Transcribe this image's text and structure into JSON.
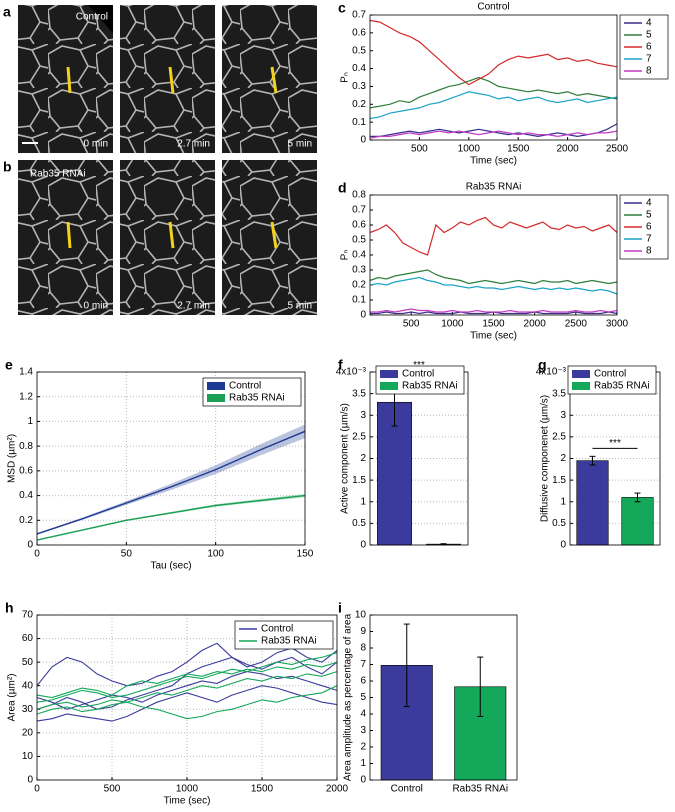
{
  "image_panels": [
    {
      "panel": "a",
      "condition": "Control",
      "times": [
        "0 min",
        "2.7 min",
        "5 min"
      ]
    },
    {
      "panel": "b",
      "condition": "Rab35 RNAi",
      "times": [
        "0 min",
        "2.7 min",
        "5 min"
      ]
    }
  ],
  "chart_data": [
    {
      "panel": "c",
      "type": "line",
      "title": "Control",
      "x_label": "Time (sec)",
      "y_label": "Pₙ",
      "xlim": [
        0,
        2500
      ],
      "xticks": [
        500,
        1000,
        1500,
        2000,
        2500
      ],
      "ylim": [
        0,
        0.7
      ],
      "yticks": [
        0,
        0.1,
        0.2,
        0.3,
        0.4,
        0.5,
        0.6,
        0.7
      ],
      "grid": false,
      "legend": "outside right",
      "x": [
        0,
        100,
        200,
        300,
        400,
        500,
        600,
        700,
        800,
        900,
        1000,
        1100,
        1200,
        1300,
        1400,
        1500,
        1600,
        1700,
        1800,
        1900,
        2000,
        2100,
        2200,
        2300,
        2400,
        2500
      ],
      "series": [
        {
          "name": "4",
          "color": "#3a2f8c",
          "values": [
            0.02,
            0.02,
            0.03,
            0.04,
            0.05,
            0.04,
            0.05,
            0.06,
            0.05,
            0.04,
            0.05,
            0.06,
            0.05,
            0.04,
            0.03,
            0.04,
            0.03,
            0.02,
            0.03,
            0.04,
            0.03,
            0.02,
            0.03,
            0.04,
            0.06,
            0.09
          ]
        },
        {
          "name": "5",
          "color": "#2e7d3a",
          "values": [
            0.18,
            0.19,
            0.2,
            0.22,
            0.21,
            0.24,
            0.26,
            0.28,
            0.3,
            0.31,
            0.33,
            0.35,
            0.33,
            0.3,
            0.29,
            0.28,
            0.27,
            0.28,
            0.27,
            0.26,
            0.27,
            0.25,
            0.26,
            0.25,
            0.24,
            0.23
          ]
        },
        {
          "name": "6",
          "color": "#d42a2a",
          "values": [
            0.67,
            0.66,
            0.63,
            0.6,
            0.58,
            0.55,
            0.5,
            0.45,
            0.4,
            0.35,
            0.31,
            0.34,
            0.37,
            0.42,
            0.45,
            0.47,
            0.46,
            0.47,
            0.48,
            0.45,
            0.46,
            0.44,
            0.45,
            0.43,
            0.42,
            0.41
          ]
        },
        {
          "name": "7",
          "color": "#1ba3c6",
          "values": [
            0.12,
            0.13,
            0.15,
            0.16,
            0.17,
            0.18,
            0.2,
            0.21,
            0.23,
            0.25,
            0.27,
            0.26,
            0.25,
            0.23,
            0.24,
            0.22,
            0.23,
            0.24,
            0.22,
            0.21,
            0.22,
            0.23,
            0.21,
            0.22,
            0.23,
            0.24
          ]
        },
        {
          "name": "8",
          "color": "#c43cc4",
          "values": [
            0.01,
            0.02,
            0.02,
            0.03,
            0.04,
            0.03,
            0.04,
            0.05,
            0.04,
            0.05,
            0.04,
            0.03,
            0.04,
            0.05,
            0.04,
            0.03,
            0.04,
            0.03,
            0.03,
            0.02,
            0.03,
            0.04,
            0.03,
            0.04,
            0.04,
            0.05
          ]
        }
      ]
    },
    {
      "panel": "d",
      "type": "line",
      "title": "Rab35 RNAi",
      "x_label": "Time (sec)",
      "y_label": "Pₙ",
      "xlim": [
        0,
        3000
      ],
      "xticks": [
        500,
        1000,
        1500,
        2000,
        2500,
        3000
      ],
      "ylim": [
        0,
        0.8
      ],
      "yticks": [
        0,
        0.1,
        0.2,
        0.3,
        0.4,
        0.5,
        0.6,
        0.7,
        0.8
      ],
      "grid": false,
      "legend": "outside right",
      "x": [
        0,
        100,
        200,
        300,
        400,
        500,
        600,
        700,
        800,
        900,
        1000,
        1100,
        1200,
        1300,
        1400,
        1500,
        1600,
        1700,
        1800,
        1900,
        2000,
        2100,
        2200,
        2300,
        2400,
        2500,
        2600,
        2700,
        2800,
        2900,
        3000
      ],
      "series": [
        {
          "name": "4",
          "color": "#3a2f8c",
          "values": [
            0.01,
            0.01,
            0.02,
            0.01,
            0.01,
            0.02,
            0.01,
            0.02,
            0.01,
            0.01,
            0.01,
            0.02,
            0.01,
            0.01,
            0.01,
            0.02,
            0.01,
            0.01,
            0.01,
            0.01,
            0.02,
            0.01,
            0.01,
            0.01,
            0.01,
            0.02,
            0.01,
            0.01,
            0.01,
            0.02,
            0.01
          ]
        },
        {
          "name": "5",
          "color": "#2e7d3a",
          "values": [
            0.23,
            0.25,
            0.24,
            0.26,
            0.27,
            0.28,
            0.29,
            0.3,
            0.27,
            0.25,
            0.24,
            0.23,
            0.21,
            0.22,
            0.23,
            0.22,
            0.21,
            0.22,
            0.23,
            0.22,
            0.21,
            0.23,
            0.22,
            0.22,
            0.23,
            0.21,
            0.22,
            0.23,
            0.22,
            0.21,
            0.22
          ]
        },
        {
          "name": "6",
          "color": "#d42a2a",
          "values": [
            0.55,
            0.57,
            0.6,
            0.55,
            0.48,
            0.45,
            0.42,
            0.4,
            0.6,
            0.55,
            0.58,
            0.62,
            0.6,
            0.63,
            0.65,
            0.6,
            0.58,
            0.62,
            0.6,
            0.58,
            0.6,
            0.62,
            0.58,
            0.57,
            0.6,
            0.58,
            0.59,
            0.56,
            0.58,
            0.6,
            0.55
          ]
        },
        {
          "name": "7",
          "color": "#1ba3c6",
          "values": [
            0.2,
            0.21,
            0.2,
            0.22,
            0.23,
            0.24,
            0.25,
            0.23,
            0.22,
            0.2,
            0.2,
            0.19,
            0.18,
            0.19,
            0.18,
            0.18,
            0.17,
            0.18,
            0.19,
            0.18,
            0.17,
            0.18,
            0.17,
            0.18,
            0.17,
            0.18,
            0.17,
            0.16,
            0.17,
            0.16,
            0.14
          ]
        },
        {
          "name": "8",
          "color": "#c43cc4",
          "values": [
            0.02,
            0.02,
            0.03,
            0.02,
            0.03,
            0.04,
            0.03,
            0.03,
            0.02,
            0.02,
            0.03,
            0.02,
            0.02,
            0.03,
            0.02,
            0.02,
            0.02,
            0.03,
            0.02,
            0.02,
            0.02,
            0.03,
            0.02,
            0.02,
            0.02,
            0.03,
            0.02,
            0.02,
            0.03,
            0.02,
            0.03
          ]
        }
      ]
    },
    {
      "panel": "e",
      "type": "band",
      "x_label": "Tau (sec)",
      "y_label": "MSD (µm²)",
      "xlim": [
        0,
        150
      ],
      "xticks": [
        0,
        50,
        100,
        150
      ],
      "ylim": [
        0,
        1.4
      ],
      "yticks": [
        0,
        0.2,
        0.4,
        0.6,
        0.8,
        1,
        1.2,
        1.4
      ],
      "grid": true,
      "legend": "upper right",
      "x": [
        0,
        25,
        50,
        75,
        100,
        125,
        150
      ],
      "series": [
        {
          "name": "Control",
          "color": "#1f3a93",
          "values": [
            0.09,
            0.21,
            0.34,
            0.47,
            0.61,
            0.77,
            0.92
          ],
          "errors": [
            0.005,
            0.01,
            0.015,
            0.025,
            0.035,
            0.045,
            0.055
          ]
        },
        {
          "name": "Rab35 RNAi",
          "color": "#1aa055",
          "values": [
            0.04,
            0.12,
            0.2,
            0.26,
            0.32,
            0.36,
            0.4
          ],
          "errors": [
            0.003,
            0.005,
            0.006,
            0.008,
            0.01,
            0.012,
            0.014
          ]
        }
      ]
    },
    {
      "panel": "f",
      "type": "bar",
      "y_label": "Active component (µm/s)",
      "ylim": [
        0,
        4
      ],
      "yticks": [
        0,
        0.5,
        1,
        1.5,
        2,
        2.5,
        3,
        3.5,
        {
          "value": 4,
          "label": "4x10⁻³"
        }
      ],
      "grid": true,
      "legend": "upper right",
      "annotation": "***",
      "categories": [
        "Control",
        "Rab35 RNAi"
      ],
      "colors": [
        "#3b3b9e",
        "#14a85a"
      ],
      "values": [
        3.3,
        0.02
      ],
      "errors": [
        0.55,
        0.01
      ]
    },
    {
      "panel": "g",
      "type": "bar",
      "y_label": "Diffusive componenet (µm/s)",
      "ylim": [
        0,
        4
      ],
      "yticks": [
        0,
        0.5,
        1,
        1.5,
        2,
        2.5,
        3,
        3.5,
        {
          "value": 4,
          "label": "4x10⁻³"
        }
      ],
      "grid": true,
      "legend": "upper right",
      "annotation": "***",
      "categories": [
        "Control",
        "Rab35 RNAi"
      ],
      "colors": [
        "#3b3b9e",
        "#14a85a"
      ],
      "values": [
        1.95,
        1.1
      ],
      "errors": [
        0.1,
        0.1
      ]
    },
    {
      "panel": "h",
      "type": "multiline",
      "x_label": "Time (sec)",
      "y_label": "Area (µm²)",
      "xlim": [
        0,
        2000
      ],
      "xticks": [
        0,
        500,
        1000,
        1500,
        2000
      ],
      "ylim": [
        0,
        70
      ],
      "yticks": [
        0,
        10,
        20,
        30,
        40,
        50,
        60,
        70
      ],
      "grid": true,
      "legend": "upper right",
      "x": [
        0,
        100,
        200,
        300,
        400,
        500,
        600,
        700,
        800,
        900,
        1000,
        1100,
        1200,
        1300,
        1400,
        1500,
        1600,
        1700,
        1800,
        1900,
        2000
      ],
      "series": [
        {
          "name": "Control",
          "color": "#3b3b9e",
          "traces": [
            [
              30,
              32,
              35,
              33,
              30,
              31,
              34,
              36,
              38,
              40,
              45,
              48,
              50,
              52,
              49,
              47,
              50,
              52,
              48,
              45,
              50
            ],
            [
              40,
              48,
              52,
              50,
              45,
              42,
              40,
              41,
              44,
              46,
              50,
              55,
              58,
              52,
              48,
              50,
              54,
              56,
              52,
              50,
              55
            ],
            [
              25,
              26,
              28,
              27,
              26,
              25,
              27,
              30,
              33,
              35,
              37,
              35,
              33,
              36,
              38,
              40,
              39,
              37,
              35,
              33,
              32
            ],
            [
              35,
              33,
              30,
              32,
              34,
              36,
              35,
              33,
              36,
              38,
              40,
              42,
              41,
              44,
              46,
              45,
              43,
              44,
              42,
              40,
              38
            ]
          ]
        },
        {
          "name": "Rab35 RNAi",
          "color": "#14a85a",
          "traces": [
            [
              33,
              34,
              36,
              38,
              37,
              35,
              36,
              38,
              40,
              42,
              44,
              43,
              45,
              47,
              46,
              48,
              50,
              49,
              51,
              52,
              54
            ],
            [
              28,
              30,
              31,
              29,
              30,
              32,
              33,
              31,
              30,
              28,
              26,
              27,
              29,
              30,
              32,
              34,
              33,
              35,
              36,
              37,
              40
            ],
            [
              36,
              35,
              37,
              39,
              38,
              36,
              40,
              42,
              41,
              43,
              45,
              44,
              46,
              45,
              47,
              46,
              48,
              47,
              49,
              48,
              50
            ],
            [
              30,
              32,
              33,
              31,
              32,
              34,
              33,
              35,
              37,
              36,
              38,
              40,
              39,
              41,
              43,
              42,
              44,
              43,
              45,
              44,
              46
            ]
          ]
        }
      ]
    },
    {
      "panel": "i",
      "type": "bar",
      "y_label": "Area amplitude as percentage of area",
      "ylim": [
        0,
        10
      ],
      "yticks": [
        0,
        1,
        2,
        3,
        4,
        5,
        6,
        7,
        8,
        9,
        10
      ],
      "grid": false,
      "categories": [
        "Control",
        "Rab35 RNAi"
      ],
      "colors": [
        "#3b3b9e",
        "#14a85a"
      ],
      "values": [
        6.95,
        5.65
      ],
      "errors": [
        2.5,
        1.8
      ]
    }
  ]
}
